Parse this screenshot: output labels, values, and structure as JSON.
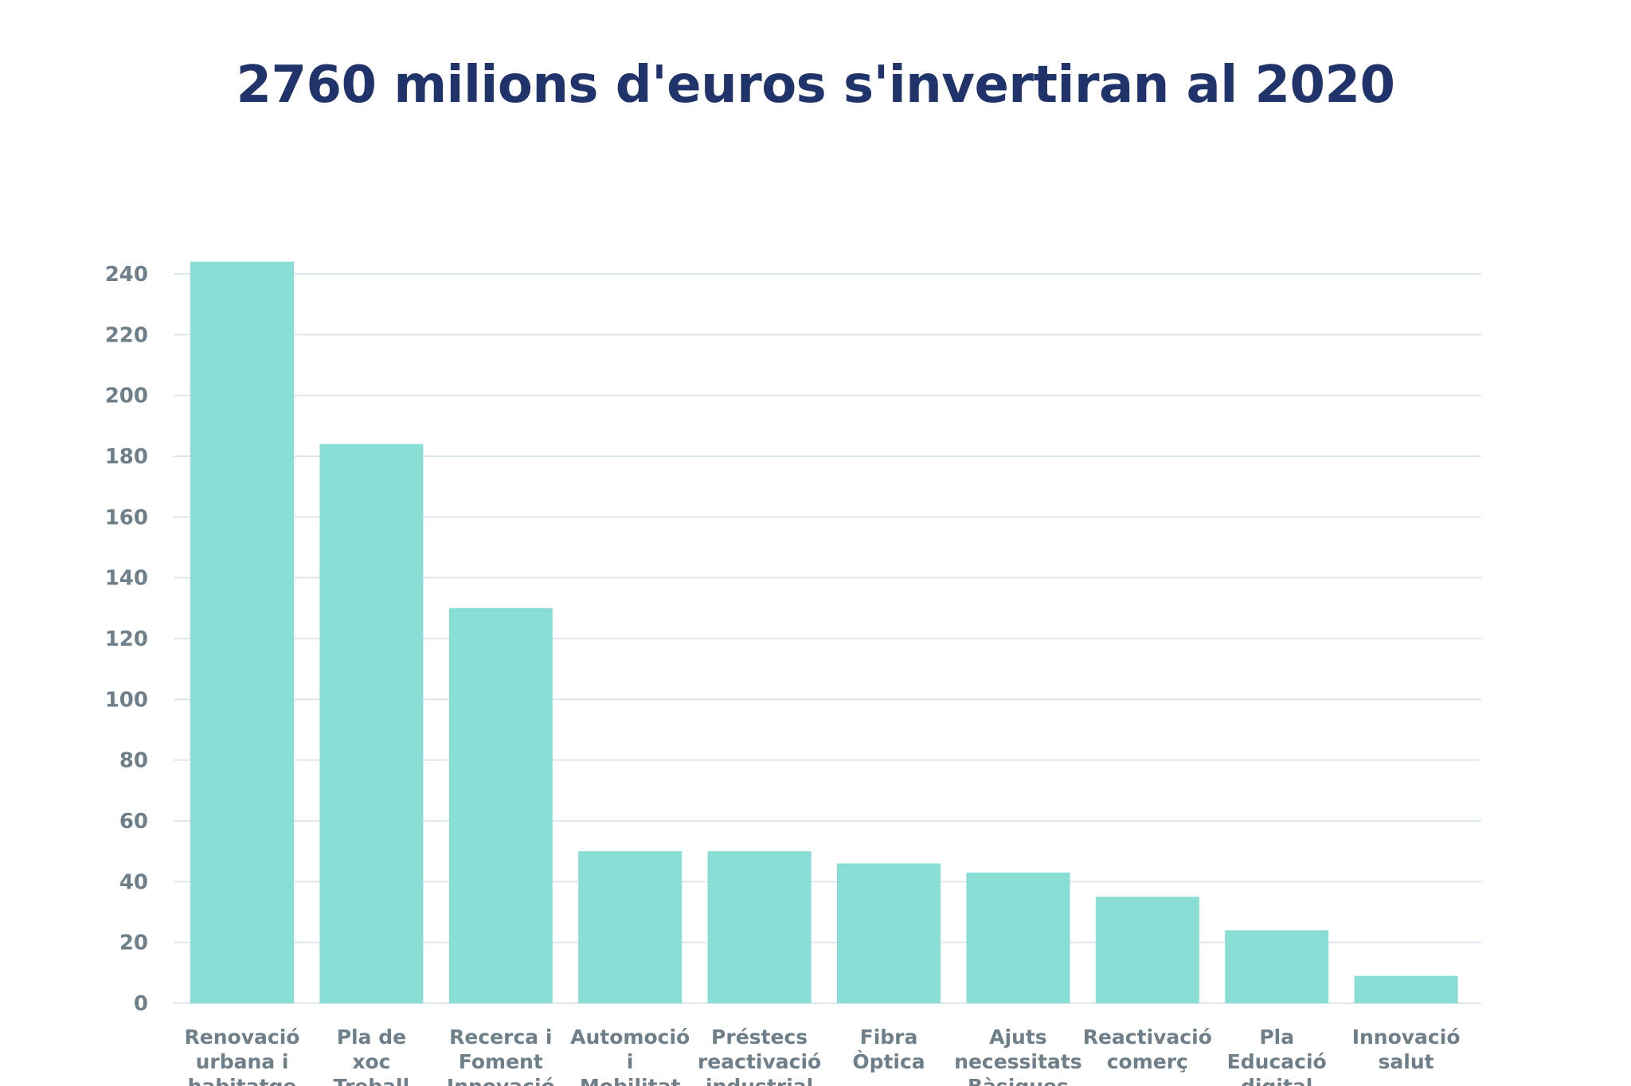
{
  "chart_data": {
    "type": "bar",
    "title": "2760 milions d'euros s'invertiran al 2020",
    "xlabel": "",
    "ylabel": "",
    "ylim": [
      0,
      240
    ],
    "yticks": [
      0,
      20,
      40,
      60,
      80,
      100,
      120,
      140,
      160,
      180,
      200,
      220,
      240
    ],
    "grid": true,
    "legend": "none",
    "bar_color": "#88ddd4",
    "categories": [
      [
        "Renovació",
        "urbana i",
        "habitatge"
      ],
      [
        "Pla de",
        "xoc",
        "Treball"
      ],
      [
        "Recerca i",
        "Foment",
        "Innovació"
      ],
      [
        "Automoció",
        "i",
        "Mobilitat"
      ],
      [
        "Préstecs",
        "reactivació",
        "industrial"
      ],
      [
        "Fibra",
        "Òptica"
      ],
      [
        "Ajuts",
        "necessitats",
        "Bàsiques"
      ],
      [
        "Reactivació",
        "comerç"
      ],
      [
        "Pla",
        "Educació",
        "digital"
      ],
      [
        "Innovació",
        "salut"
      ]
    ],
    "values": [
      244,
      184,
      130,
      50,
      50,
      46,
      43,
      35,
      24,
      9
    ]
  },
  "colors": {
    "title": "#21336b",
    "bar": "#88ddd4",
    "tick_text": "#6f7f8a",
    "grid": "#dde7ef"
  }
}
